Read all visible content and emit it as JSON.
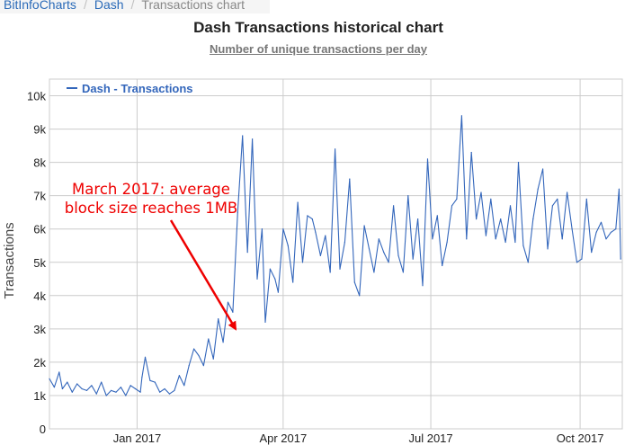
{
  "breadcrumb": {
    "items": [
      "BitInfoCharts",
      "Dash"
    ],
    "current": "Transactions chart"
  },
  "header": {
    "title": "Dash Transactions historical chart",
    "subtitle": "Number of unique transactions per day"
  },
  "chart_data": {
    "type": "line",
    "ylabel": "Transactions",
    "xlabel": "",
    "ylim": [
      0,
      10500
    ],
    "yticks": [
      {
        "value": 0,
        "label": "0"
      },
      {
        "value": 1000,
        "label": "1k"
      },
      {
        "value": 2000,
        "label": "2k"
      },
      {
        "value": 3000,
        "label": "3k"
      },
      {
        "value": 4000,
        "label": "4k"
      },
      {
        "value": 5000,
        "label": "5k"
      },
      {
        "value": 6000,
        "label": "6k"
      },
      {
        "value": 7000,
        "label": "7k"
      },
      {
        "value": 8000,
        "label": "8k"
      },
      {
        "value": 9000,
        "label": "9k"
      },
      {
        "value": 10000,
        "label": "10k"
      }
    ],
    "xlim": [
      "2016-11-08",
      "2017-10-27"
    ],
    "xticks": [
      {
        "value": "2017-01-01",
        "label": "Jan 2017"
      },
      {
        "value": "2017-04-01",
        "label": "Apr 2017"
      },
      {
        "value": "2017-07-01",
        "label": "Jul 2017"
      },
      {
        "value": "2017-10-01",
        "label": "Oct 2017"
      }
    ],
    "grid": true,
    "legend_position": "top-left",
    "series": [
      {
        "name": "Dash - Transactions",
        "color": "#3366bb",
        "x": [
          "2016-11-08",
          "2016-11-11",
          "2016-11-14",
          "2016-11-16",
          "2016-11-19",
          "2016-11-22",
          "2016-11-25",
          "2016-11-28",
          "2016-12-01",
          "2016-12-04",
          "2016-12-07",
          "2016-12-10",
          "2016-12-13",
          "2016-12-16",
          "2016-12-19",
          "2016-12-22",
          "2016-12-25",
          "2016-12-28",
          "2016-12-31",
          "2017-01-03",
          "2017-01-04",
          "2017-01-06",
          "2017-01-09",
          "2017-01-12",
          "2017-01-15",
          "2017-01-18",
          "2017-01-21",
          "2017-01-24",
          "2017-01-27",
          "2017-01-30",
          "2017-02-02",
          "2017-02-05",
          "2017-02-08",
          "2017-02-11",
          "2017-02-14",
          "2017-02-17",
          "2017-02-20",
          "2017-02-23",
          "2017-02-26",
          "2017-03-01",
          "2017-03-04",
          "2017-03-07",
          "2017-03-10",
          "2017-03-13",
          "2017-03-16",
          "2017-03-19",
          "2017-03-21",
          "2017-03-24",
          "2017-03-27",
          "2017-03-29",
          "2017-04-01",
          "2017-04-04",
          "2017-04-07",
          "2017-04-10",
          "2017-04-13",
          "2017-04-16",
          "2017-04-19",
          "2017-04-21",
          "2017-04-24",
          "2017-04-27",
          "2017-04-30",
          "2017-05-03",
          "2017-05-06",
          "2017-05-09",
          "2017-05-12",
          "2017-05-15",
          "2017-05-18",
          "2017-05-21",
          "2017-05-24",
          "2017-05-27",
          "2017-05-30",
          "2017-06-02",
          "2017-06-05",
          "2017-06-08",
          "2017-06-11",
          "2017-06-14",
          "2017-06-17",
          "2017-06-20",
          "2017-06-23",
          "2017-06-26",
          "2017-06-29",
          "2017-07-02",
          "2017-07-05",
          "2017-07-08",
          "2017-07-11",
          "2017-07-14",
          "2017-07-17",
          "2017-07-20",
          "2017-07-23",
          "2017-07-26",
          "2017-07-29",
          "2017-08-01",
          "2017-08-04",
          "2017-08-07",
          "2017-08-10",
          "2017-08-13",
          "2017-08-16",
          "2017-08-19",
          "2017-08-22",
          "2017-08-24",
          "2017-08-27",
          "2017-08-30",
          "2017-09-02",
          "2017-09-05",
          "2017-09-08",
          "2017-09-11",
          "2017-09-14",
          "2017-09-17",
          "2017-09-20",
          "2017-09-23",
          "2017-09-26",
          "2017-09-29",
          "2017-10-02",
          "2017-10-05",
          "2017-10-08",
          "2017-10-11",
          "2017-10-14",
          "2017-10-17",
          "2017-10-20",
          "2017-10-23",
          "2017-10-25",
          "2017-10-26"
        ],
        "values": [
          1500,
          1250,
          1700,
          1200,
          1400,
          1100,
          1350,
          1200,
          1150,
          1300,
          1050,
          1400,
          1000,
          1150,
          1100,
          1250,
          1000,
          1300,
          1200,
          1100,
          1550,
          2150,
          1450,
          1400,
          1100,
          1200,
          1050,
          1150,
          1600,
          1300,
          1900,
          2400,
          2200,
          1900,
          2700,
          2100,
          3300,
          2600,
          3800,
          3500,
          6500,
          8800,
          5300,
          8700,
          4500,
          6000,
          3200,
          4800,
          4500,
          4100,
          6000,
          5500,
          4400,
          6800,
          5000,
          6400,
          6300,
          5900,
          5200,
          5800,
          4700,
          8400,
          4800,
          5600,
          7500,
          4400,
          4000,
          6100,
          5400,
          4700,
          5700,
          5300,
          5000,
          6700,
          5200,
          4700,
          7000,
          5100,
          6300,
          4300,
          8100,
          5700,
          6400,
          4900,
          5600,
          6700,
          6900,
          9400,
          5700,
          8300,
          6300,
          7100,
          5800,
          6900,
          5700,
          6300,
          5600,
          6700,
          5600,
          8000,
          5500,
          5000,
          6300,
          7200,
          7800,
          5400,
          6700,
          6900,
          5700,
          7100,
          6000,
          5000,
          5100,
          6900,
          5300,
          5900,
          6200,
          5700,
          5900,
          6000,
          7200,
          5100
        ]
      }
    ],
    "annotations": [
      {
        "lines": [
          "March 2017: average",
          "block size reaches 1MB"
        ],
        "color": "#ee0000",
        "arrow_target": {
          "x": "2017-03-21",
          "y": 3050
        }
      }
    ]
  }
}
